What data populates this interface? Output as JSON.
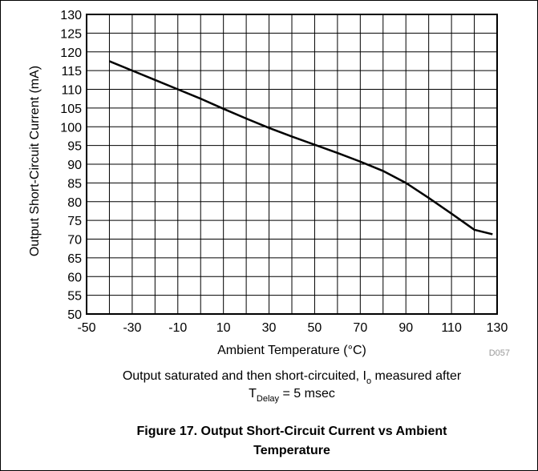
{
  "chart_data": {
    "type": "line",
    "x_label": "Ambient Temperature (°C)",
    "y_label": "Output Short-Circuit Current (mA)",
    "code": "D057",
    "x": [
      -40,
      -30,
      -20,
      -10,
      0,
      10,
      20,
      30,
      40,
      50,
      60,
      70,
      80,
      90,
      100,
      110,
      120,
      128
    ],
    "series": [
      {
        "name": "Output Short-Circuit Current",
        "color": "#000000",
        "values": [
          117.5,
          115,
          112.5,
          110,
          107.5,
          104.8,
          102.2,
          99.7,
          97.4,
          95.2,
          93,
          90.7,
          88.2,
          85,
          81,
          76.8,
          72.5,
          71.3
        ]
      }
    ],
    "xlim": [
      -50,
      130
    ],
    "xticks": [
      -50,
      -30,
      -10,
      10,
      30,
      50,
      70,
      90,
      110,
      130
    ],
    "xminor": [
      -40,
      -20,
      0,
      20,
      40,
      60,
      80,
      100,
      120
    ],
    "ylim": [
      50,
      130
    ],
    "yticks": [
      50,
      55,
      60,
      65,
      70,
      75,
      80,
      85,
      90,
      95,
      100,
      105,
      110,
      115,
      120,
      125,
      130
    ],
    "grid": true
  },
  "caption": {
    "line1": {
      "text": "Output saturated and then short-circuited, I",
      "sub": "o",
      "after": " measured after"
    },
    "line2": {
      "text": "T",
      "sub": "Delay",
      "after": " = 5 msec"
    }
  },
  "figure_title": [
    "Figure 17. Output Short-Circuit Current vs Ambient",
    "Temperature"
  ]
}
